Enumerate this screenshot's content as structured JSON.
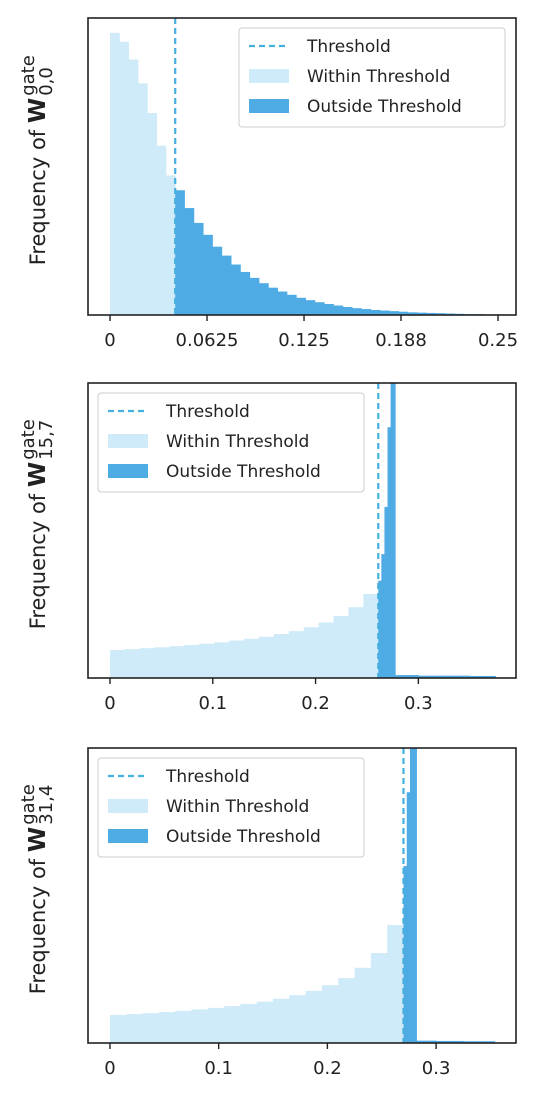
{
  "chart_data": [
    {
      "type": "histogram",
      "ylabel": {
        "text": "Frequency of ",
        "symbol": "W",
        "sup": "gate",
        "sub": "0,0"
      },
      "xlim": [
        -0.0142,
        0.2616
      ],
      "ylim": [
        0,
        100
      ],
      "xticks": [
        0,
        0.0625,
        0.125,
        {
          "value": 0.1875,
          "label": "0.188"
        },
        0.25
      ],
      "legend": "upper right",
      "threshold": {
        "name": "Threshold",
        "value": 0.042,
        "color": "#45b0e0"
      },
      "series": [
        {
          "name": "Within Threshold",
          "color": "#cfeaf8",
          "bins": [
            0,
            0.006,
            0.012,
            0.018,
            0.024,
            0.03,
            0.036,
            0.042
          ],
          "values": [
            95,
            92,
            86,
            78,
            68,
            57,
            47
          ]
        },
        {
          "name": "Outside Threshold",
          "color": "#4fabe3",
          "bins": [
            0.042,
            0.048,
            0.054,
            0.06,
            0.066,
            0.072,
            0.078,
            0.084,
            0.09,
            0.096,
            0.102,
            0.108,
            0.114,
            0.12,
            0.126,
            0.132,
            0.138,
            0.144,
            0.15,
            0.156,
            0.162,
            0.168,
            0.174,
            0.18,
            0.186,
            0.192,
            0.198,
            0.204,
            0.21,
            0.216,
            0.222,
            0.228,
            0.234,
            0.24,
            0.246,
            0.252
          ],
          "values": [
            42,
            36,
            31,
            27,
            23,
            20,
            17,
            14.5,
            12.5,
            10.7,
            9.2,
            7.9,
            6.8,
            5.8,
            5,
            4.3,
            3.7,
            3.2,
            2.7,
            2.3,
            2,
            1.7,
            1.5,
            1.3,
            1.1,
            0.9,
            0.8,
            0.7,
            0.6,
            0.5,
            0.4,
            0.3,
            0.3,
            0.2,
            0.2
          ]
        }
      ]
    },
    {
      "type": "histogram",
      "ylabel": {
        "text": "Frequency of ",
        "symbol": "W",
        "sup": "gate",
        "sub": "15,7"
      },
      "xlim": [
        -0.0214,
        0.395
      ],
      "ylim": [
        0,
        100
      ],
      "xticks": [
        0,
        0.1,
        0.2,
        0.3
      ],
      "legend": "upper left",
      "threshold": {
        "name": "Threshold",
        "value": 0.261,
        "color": "#45b0e0"
      },
      "series": [
        {
          "name": "Within Threshold",
          "color": "#cfeaf8",
          "bins": [
            0,
            0.0145,
            0.029,
            0.0435,
            0.058,
            0.0725,
            0.087,
            0.1015,
            0.116,
            0.1305,
            0.145,
            0.1595,
            0.174,
            0.1885,
            0.203,
            0.2175,
            0.232,
            0.2465,
            0.261
          ],
          "values": [
            9.5,
            9.8,
            10.1,
            10.4,
            10.8,
            11.2,
            11.6,
            12.1,
            12.7,
            13.3,
            14,
            14.9,
            15.9,
            17.2,
            18.8,
            21,
            24,
            28.5
          ]
        },
        {
          "name": "Outside Threshold",
          "color": "#4fabe3",
          "bins": [
            0.261,
            0.264,
            0.267,
            0.27,
            0.273,
            0.2775,
            0.3,
            0.325,
            0.35,
            0.375
          ],
          "values": [
            33,
            42,
            58,
            85,
            100,
            1,
            0.8,
            0.8,
            0.7
          ]
        }
      ]
    },
    {
      "type": "histogram",
      "ylabel": {
        "text": "Frequency of ",
        "symbol": "W",
        "sup": "gate",
        "sub": "31,4"
      },
      "xlim": [
        -0.0202,
        0.3735
      ],
      "ylim": [
        0,
        100
      ],
      "xticks": [
        0,
        0.1,
        0.2,
        0.3
      ],
      "legend": "upper left",
      "threshold": {
        "name": "Threshold",
        "value": 0.27,
        "color": "#45b0e0"
      },
      "series": [
        {
          "name": "Within Threshold",
          "color": "#cfeaf8",
          "bins": [
            0,
            0.015,
            0.03,
            0.045,
            0.06,
            0.075,
            0.09,
            0.105,
            0.12,
            0.135,
            0.15,
            0.165,
            0.18,
            0.195,
            0.21,
            0.225,
            0.24,
            0.255,
            0.27
          ],
          "values": [
            9.5,
            9.8,
            10.1,
            10.5,
            10.9,
            11.4,
            11.9,
            12.5,
            13.2,
            14,
            15,
            16.2,
            17.7,
            19.6,
            22,
            25.5,
            30.5,
            40
          ]
        },
        {
          "name": "Outside Threshold",
          "color": "#4fabe3",
          "bins": [
            0.27,
            0.273,
            0.276,
            0.279,
            0.282,
            0.3,
            0.325,
            0.354
          ],
          "values": [
            60,
            85,
            100,
            100,
            0.8,
            0.7,
            0.6
          ]
        }
      ]
    }
  ]
}
